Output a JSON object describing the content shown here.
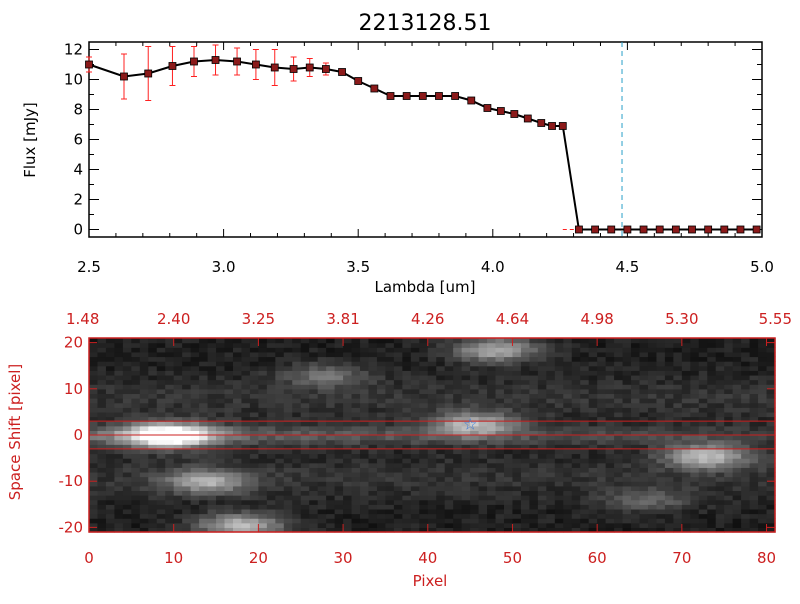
{
  "chart_data": [
    {
      "type": "line",
      "title": "2213128.51",
      "xlabel": "Lambda [um]",
      "ylabel": "Flux [mJy]",
      "xlim": [
        2.5,
        5.0
      ],
      "ylim": [
        -0.5,
        12.5
      ],
      "xticks": [
        "2.5",
        "3.0",
        "3.5",
        "4.0",
        "4.5",
        "5.0"
      ],
      "yticks": [
        "0",
        "2",
        "4",
        "6",
        "8",
        "10",
        "12"
      ],
      "xtick_values": [
        2.5,
        3.0,
        3.5,
        4.0,
        4.5,
        5.0
      ],
      "ytick_values": [
        0,
        2,
        4,
        6,
        8,
        10,
        12
      ],
      "vline_x": 4.48,
      "hline_y": 0,
      "colors": {
        "line": "#000000",
        "marker": "#8b1a1a",
        "errorbar": "#ff2020",
        "vline": "#29a0c8",
        "hline": "#ff2020"
      },
      "series": [
        {
          "name": "flux",
          "x": [
            2.5,
            2.63,
            2.72,
            2.81,
            2.89,
            2.97,
            3.05,
            3.12,
            3.19,
            3.26,
            3.32,
            3.38,
            3.44,
            3.5,
            3.56,
            3.62,
            3.68,
            3.74,
            3.8,
            3.86,
            3.92,
            3.98,
            4.03,
            4.08,
            4.13,
            4.18,
            4.22,
            4.26,
            4.32,
            4.38,
            4.44,
            4.5,
            4.56,
            4.62,
            4.68,
            4.74,
            4.8,
            4.86,
            4.92,
            4.98
          ],
          "y": [
            11.0,
            10.2,
            10.4,
            10.9,
            11.2,
            11.3,
            11.2,
            11.0,
            10.8,
            10.7,
            10.8,
            10.7,
            10.5,
            9.9,
            9.4,
            8.9,
            8.9,
            8.9,
            8.9,
            8.9,
            8.6,
            8.1,
            7.9,
            7.7,
            7.4,
            7.1,
            6.9,
            6.9,
            0.0,
            0.0,
            0.0,
            0.0,
            0.0,
            0.0,
            0.0,
            0.0,
            0.0,
            0.0,
            0.0,
            0.0
          ],
          "yerr": [
            0.5,
            1.5,
            1.8,
            1.3,
            1.0,
            1.0,
            0.9,
            1.0,
            1.2,
            0.8,
            0.6,
            0.4,
            0.2,
            0.2,
            0.2,
            0.1,
            0.1,
            0.1,
            0.1,
            0.1,
            0.1,
            0.1,
            0.1,
            0.1,
            0.1,
            0.1,
            0.1,
            0.1,
            0.0,
            0.0,
            0.0,
            0.0,
            0.0,
            0.0,
            0.0,
            0.0,
            0.0,
            0.0,
            0.0,
            0.0
          ]
        }
      ]
    },
    {
      "type": "heatmap",
      "xlabel": "Pixel",
      "ylabel": "Space Shift [pixel]",
      "xlim": [
        0,
        81
      ],
      "ylim": [
        -21,
        21
      ],
      "xticks": [
        "0",
        "10",
        "20",
        "30",
        "40",
        "50",
        "60",
        "70",
        "80"
      ],
      "yticks": [
        "-20",
        "-10",
        "0",
        "10",
        "20"
      ],
      "xtick_values": [
        0,
        10,
        20,
        30,
        40,
        50,
        60,
        70,
        80
      ],
      "ytick_values": [
        -20,
        -10,
        0,
        10,
        20
      ],
      "top_axis_label_values": [
        1,
        11,
        21,
        31,
        41,
        51,
        61,
        71,
        81
      ],
      "top_axis_labels": [
        "1.48",
        "2.40",
        "3.25",
        "3.81",
        "4.26",
        "4.64",
        "4.98",
        "5.30",
        "5.55"
      ],
      "aperture_lines": [
        3,
        0,
        -3
      ],
      "source_marker": {
        "x": 45,
        "y": 2.5,
        "symbol": "☆"
      },
      "colors": {
        "axes": "#cc2020",
        "aperture": "#cc2020",
        "marker": "#3a7ad8"
      },
      "blobs": [
        {
          "x": 9.5,
          "y": 0,
          "intensity": 1.0
        },
        {
          "x": 45.5,
          "y": 2.5,
          "intensity": 0.55
        },
        {
          "x": 48,
          "y": 18.5,
          "intensity": 0.55
        },
        {
          "x": 14,
          "y": -10,
          "intensity": 0.5
        },
        {
          "x": 18,
          "y": -19.5,
          "intensity": 0.6
        },
        {
          "x": 73,
          "y": -4.5,
          "intensity": 0.6
        },
        {
          "x": 66,
          "y": -14,
          "intensity": 0.25
        },
        {
          "x": 28,
          "y": 13,
          "intensity": 0.3
        }
      ]
    }
  ]
}
